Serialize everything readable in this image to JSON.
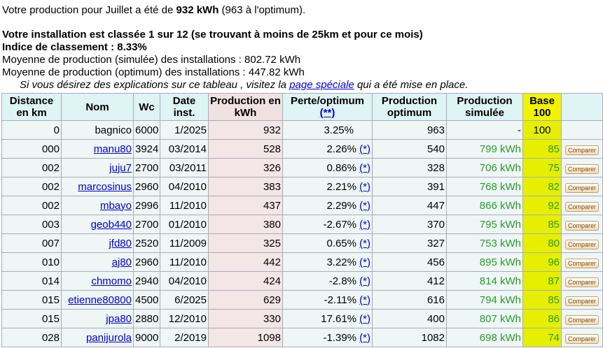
{
  "intro": {
    "prefix": "Votre production pour Juillet a été de",
    "amount": "932 kWh",
    "suffix": "(963 à l'optimum)."
  },
  "ranking": {
    "line": "Votre installation est classée 1 sur 12 (se trouvant à moins de 25km et pour ce mois)",
    "index": "Indice de classement : 8.33%"
  },
  "averages": [
    "Moyenne de production (simulée) des installations : 802.72 kWh",
    "Moyenne de production (optimum) des installations : 447.82 kWh"
  ],
  "help": {
    "prefix": "Si vous désirez des explications sur ce tableau , visitez la",
    "link": "page spéciale",
    "suffix": "qui a été mise en place."
  },
  "table": {
    "headers": [
      "Distance en km",
      "Nom",
      "Wc",
      "Date inst.",
      "Production en kWh",
      "Perte/optimum",
      "Production optimum",
      "Production simulée",
      "Base 100"
    ],
    "header_note": "(**)",
    "rows": [
      {
        "distance": "0",
        "name": "bagnico",
        "wc": 6000,
        "date": "1/2025",
        "production": 932,
        "perte": "3.25%",
        "optimum": 963,
        "simulee": "-",
        "base": 100
      },
      {
        "distance": "000",
        "name": "manu80",
        "wc": 3924,
        "date": "03/2014",
        "production": 528,
        "perte": "2.26%",
        "note": "(*)",
        "optimum": 540,
        "simulee": "799 kWh",
        "base": 85,
        "action": "Comparer"
      },
      {
        "distance": "002",
        "name": "juju7",
        "wc": 2700,
        "date": "03/2011",
        "production": 326,
        "perte": "0.86%",
        "note": "(*)",
        "optimum": 328,
        "simulee": "706 kWh",
        "base": 75,
        "action": "Comparer"
      },
      {
        "distance": "002",
        "name": "marcosinus",
        "wc": 2960,
        "date": "04/2010",
        "production": 383,
        "perte": "2.21%",
        "note": "(*)",
        "optimum": 391,
        "simulee": "768 kWh",
        "base": 82,
        "action": "Comparer"
      },
      {
        "distance": "002",
        "name": "mbayo",
        "wc": 2996,
        "date": "11/2010",
        "production": 437,
        "perte": "2.29%",
        "note": "(*)",
        "optimum": 447,
        "simulee": "866 kWh",
        "base": 92,
        "action": "Comparer"
      },
      {
        "distance": "003",
        "name": "geob440",
        "wc": 2700,
        "date": "01/2010",
        "production": 380,
        "perte": "-2.67%",
        "note": "(*)",
        "optimum": 370,
        "simulee": "795 kWh",
        "base": 85,
        "action": "Comparer"
      },
      {
        "distance": "007",
        "name": "jfd80",
        "wc": 2520,
        "date": "11/2009",
        "production": 325,
        "perte": "0.65%",
        "note": "(*)",
        "optimum": 327,
        "simulee": "753 kWh",
        "base": 80,
        "action": "Comparer"
      },
      {
        "distance": "010",
        "name": "aj80",
        "wc": 2960,
        "date": "11/2010",
        "production": 442,
        "perte": "3.22%",
        "note": "(*)",
        "optimum": 456,
        "simulee": "895 kWh",
        "base": 96,
        "action": "Comparer"
      },
      {
        "distance": "014",
        "name": "chmomo",
        "wc": 2940,
        "date": "04/2010",
        "production": 424,
        "perte": "-2.8%",
        "note": "(*)",
        "optimum": 412,
        "simulee": "814 kWh",
        "base": 87,
        "action": "Comparer"
      },
      {
        "distance": "015",
        "name": "etienne80800",
        "wc": 4500,
        "date": "6/2025",
        "production": 629,
        "perte": "-2.11%",
        "note": "(*)",
        "optimum": 616,
        "simulee": "794 kWh",
        "base": 85,
        "action": "Comparer"
      },
      {
        "distance": "015",
        "name": "jpa80",
        "wc": 2880,
        "date": "12/2010",
        "production": 330,
        "perte": "17.61%",
        "note": "(*)",
        "optimum": 400,
        "simulee": "807 kWh",
        "base": 86,
        "action": "Comparer"
      },
      {
        "distance": "028",
        "name": "panijurola",
        "wc": 9000,
        "date": "2/2019",
        "production": 1098,
        "perte": "-1.39%",
        "note": "(*)",
        "optimum": 1082,
        "simulee": "698 kWh",
        "base": 74,
        "action": "Comparer"
      }
    ]
  }
}
